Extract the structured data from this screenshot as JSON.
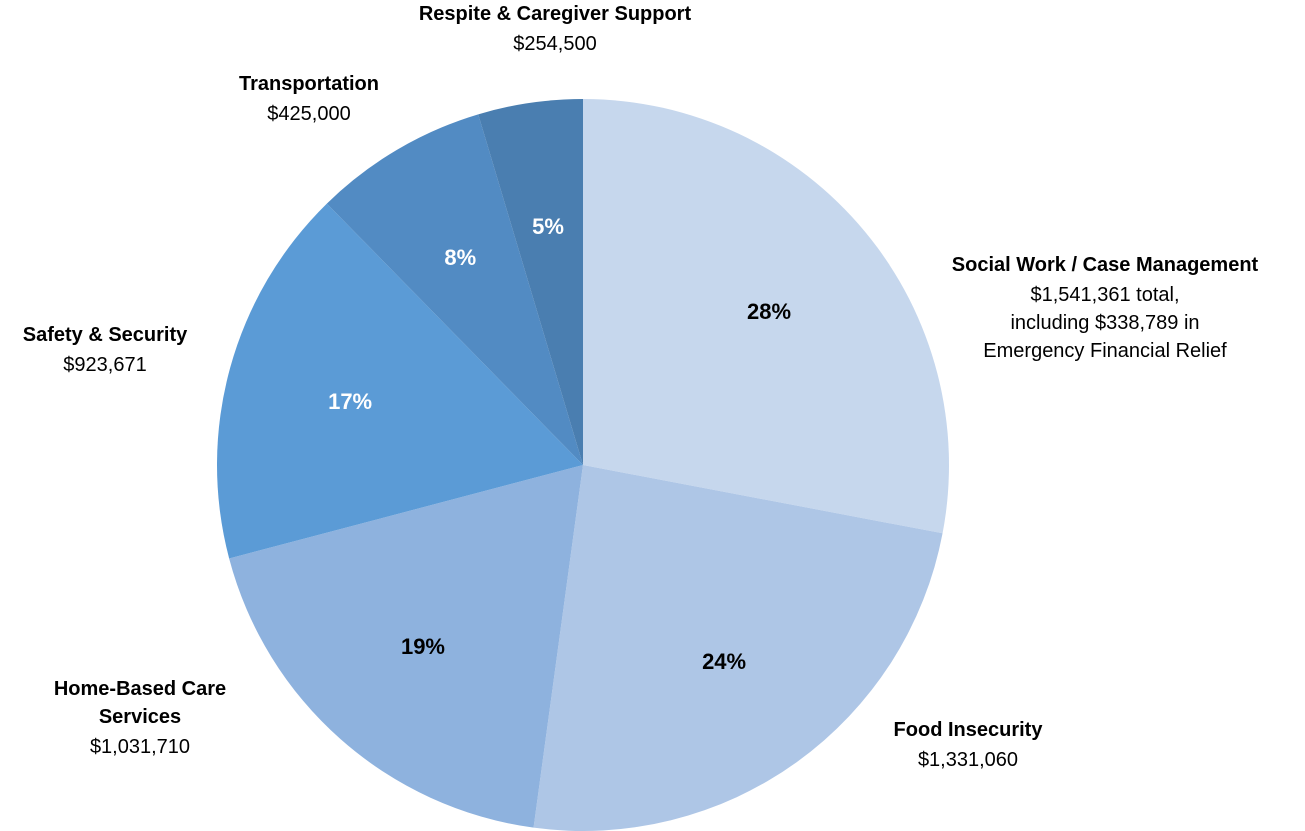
{
  "chart_data": {
    "type": "pie",
    "slices": [
      {
        "category": "Social Work / Case Management",
        "value_lines": [
          "$1,541,361 total,",
          "including $338,789 in",
          "Emergency Financial Relief"
        ],
        "value": 1541361,
        "percent_label": "28%",
        "color": "#c6d7ed",
        "pct_color": "#000000"
      },
      {
        "category": "Food Insecurity",
        "value_lines": [
          "$1,331,060"
        ],
        "value": 1331060,
        "percent_label": "24%",
        "color": "#aec6e6",
        "pct_color": "#000000"
      },
      {
        "category": "Home-Based Care Services",
        "category_lines": [
          "Home-Based Care",
          "Services"
        ],
        "value_lines": [
          "$1,031,710"
        ],
        "value": 1031710,
        "percent_label": "19%",
        "color": "#8eb2de",
        "pct_color": "#000000"
      },
      {
        "category": "Safety & Security",
        "value_lines": [
          "$923,671"
        ],
        "value": 923671,
        "percent_label": "17%",
        "color": "#5b9bd6",
        "pct_color": "#ffffff"
      },
      {
        "category": "Transportation",
        "value_lines": [
          "$425,000"
        ],
        "value": 425000,
        "percent_label": "8%",
        "color": "#528bc3",
        "pct_color": "#ffffff"
      },
      {
        "category": "Respite & Caregiver Support",
        "value_lines": [
          "$254,500"
        ],
        "value": 254500,
        "percent_label": "5%",
        "color": "#4a7eb0",
        "pct_color": "#ffffff"
      }
    ],
    "start": "12 o'clock",
    "direction": "clockwise",
    "legend": "none (outside data labels)"
  }
}
